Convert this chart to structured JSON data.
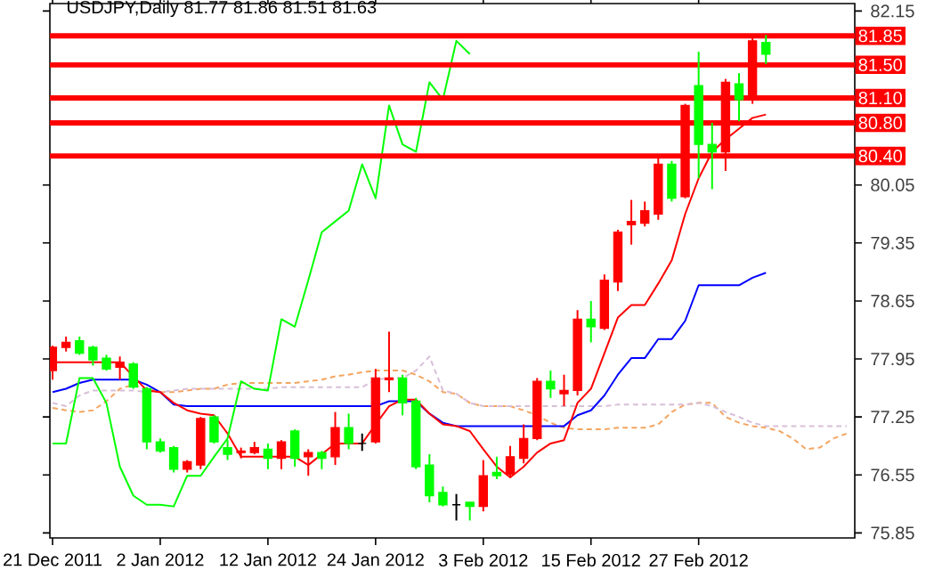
{
  "chart_data": {
    "type": "candlestick",
    "title": "USDJPY,Daily  81.77 81.86 81.51 81.63",
    "categories": [
      "21 Dec 2011",
      null,
      null,
      null,
      null,
      null,
      null,
      null,
      "2 Jan 2012",
      null,
      null,
      null,
      null,
      null,
      null,
      null,
      "12 Jan 2012",
      null,
      null,
      null,
      null,
      null,
      null,
      null,
      "24 Jan 2012",
      null,
      null,
      null,
      null,
      null,
      null,
      null,
      "3 Feb 2012",
      null,
      null,
      null,
      null,
      null,
      null,
      null,
      "15 Feb 2012",
      null,
      null,
      null,
      null,
      null,
      null,
      null,
      "27 Feb 2012",
      null,
      null,
      null,
      null,
      null,
      null,
      null,
      null,
      null,
      null,
      null
    ],
    "ohlc": [
      [
        77.81,
        78.11,
        77.7,
        78.09
      ],
      [
        78.09,
        78.22,
        78.04,
        78.15
      ],
      [
        78.17,
        78.22,
        78.0,
        78.02
      ],
      [
        78.09,
        78.11,
        77.87,
        77.94
      ],
      [
        77.96,
        78.0,
        77.81,
        77.83
      ],
      [
        77.85,
        77.98,
        77.7,
        77.91
      ],
      [
        77.89,
        77.91,
        77.59,
        77.61
      ],
      [
        77.59,
        77.61,
        76.86,
        76.95
      ],
      [
        76.95,
        76.99,
        76.82,
        76.84
      ],
      [
        76.88,
        76.9,
        76.58,
        76.62
      ],
      [
        76.62,
        76.73,
        76.58,
        76.71
      ],
      [
        76.67,
        77.25,
        76.62,
        77.23
      ],
      [
        77.25,
        77.27,
        76.93,
        76.95
      ],
      [
        76.88,
        76.97,
        76.73,
        76.8
      ],
      [
        76.82,
        76.88,
        76.75,
        76.84
      ],
      [
        76.82,
        76.95,
        76.8,
        76.88
      ],
      [
        76.86,
        76.93,
        76.62,
        76.75
      ],
      [
        76.75,
        76.97,
        76.62,
        76.95
      ],
      [
        77.08,
        77.1,
        76.65,
        76.75
      ],
      [
        76.77,
        76.86,
        76.54,
        76.82
      ],
      [
        76.82,
        76.84,
        76.62,
        76.75
      ],
      [
        76.77,
        77.31,
        76.67,
        77.12
      ],
      [
        77.12,
        77.29,
        76.86,
        76.93
      ],
      [
        76.93,
        77.05,
        76.84,
        76.93
      ],
      [
        76.95,
        77.83,
        76.93,
        77.72
      ],
      [
        77.7,
        78.28,
        77.55,
        77.72
      ],
      [
        77.72,
        77.76,
        77.27,
        77.42
      ],
      [
        77.44,
        77.48,
        76.62,
        76.65
      ],
      [
        76.67,
        76.8,
        76.22,
        76.3
      ],
      [
        76.34,
        76.41,
        76.17,
        76.19
      ],
      [
        76.19,
        76.32,
        76.0,
        76.19
      ],
      [
        76.22,
        76.22,
        76.0,
        76.17
      ],
      [
        76.17,
        76.73,
        76.11,
        76.54
      ],
      [
        76.58,
        76.77,
        76.5,
        76.54
      ],
      [
        76.56,
        76.9,
        76.52,
        76.77
      ],
      [
        76.75,
        77.16,
        76.69,
        76.99
      ],
      [
        76.99,
        77.72,
        76.97,
        77.68
      ],
      [
        77.68,
        77.81,
        77.48,
        77.59
      ],
      [
        77.53,
        77.76,
        77.38,
        77.57
      ],
      [
        77.57,
        78.54,
        77.51,
        78.43
      ],
      [
        78.43,
        78.65,
        78.15,
        78.34
      ],
      [
        78.32,
        78.97,
        78.3,
        78.9
      ],
      [
        78.88,
        79.51,
        78.77,
        79.48
      ],
      [
        79.57,
        79.87,
        79.33,
        79.61
      ],
      [
        79.59,
        79.85,
        79.55,
        79.74
      ],
      [
        79.7,
        80.37,
        79.63,
        80.3
      ],
      [
        80.3,
        80.34,
        79.85,
        79.89
      ],
      [
        79.91,
        81.03,
        79.89,
        81.01
      ],
      [
        81.25,
        81.66,
        80.13,
        80.54
      ],
      [
        80.54,
        80.8,
        80.0,
        80.45
      ],
      [
        80.45,
        81.33,
        80.22,
        81.29
      ],
      [
        81.27,
        81.4,
        80.82,
        81.08
      ],
      [
        81.1,
        81.83,
        81.03,
        81.79
      ],
      [
        81.77,
        81.86,
        81.51,
        81.63
      ],
      null,
      null,
      null,
      null,
      null,
      null
    ],
    "colors": [
      "#ff0000",
      "#ff0000",
      "#00ff00",
      "#00ff00",
      "#00ff00",
      "#ff0000",
      "#00ff00",
      "#00ff00",
      "#00ff00",
      "#00ff00",
      "#ff0000",
      "#ff0000",
      "#00ff00",
      "#00ff00",
      "#ff0000",
      "#ff0000",
      "#00ff00",
      "#ff0000",
      "#00ff00",
      "#ff0000",
      "#00ff00",
      "#ff0000",
      "#00ff00",
      "#000000",
      "#ff0000",
      "#ff0000",
      "#00ff00",
      "#00ff00",
      "#00ff00",
      "#00ff00",
      "#000000",
      "#00ff00",
      "#ff0000",
      "#00ff00",
      "#ff0000",
      "#ff0000",
      "#ff0000",
      "#00ff00",
      "#ff0000",
      "#ff0000",
      "#00ff00",
      "#ff0000",
      "#ff0000",
      "#ff0000",
      "#ff0000",
      "#ff0000",
      "#00ff00",
      "#ff0000",
      "#00ff00",
      "#00ff00",
      "#ff0000",
      "#00ff00",
      "#ff0000",
      "#00ff00",
      null,
      null,
      null,
      null,
      null,
      null
    ],
    "series": [
      {
        "type": "line",
        "color": "#f4a460",
        "line_style": "dashed",
        "values": [
          77.36,
          77.33,
          77.31,
          77.33,
          77.44,
          77.59,
          77.64,
          77.59,
          77.55,
          77.55,
          77.57,
          77.59,
          77.59,
          77.64,
          77.66,
          77.66,
          77.66,
          77.66,
          77.66,
          77.68,
          77.7,
          77.74,
          77.76,
          77.79,
          77.81,
          77.81,
          77.81,
          77.76,
          77.68,
          77.55,
          77.53,
          77.42,
          77.38,
          77.38,
          77.38,
          77.33,
          77.27,
          77.18,
          77.12,
          77.1,
          77.1,
          77.1,
          77.12,
          77.12,
          77.12,
          77.16,
          77.31,
          77.4,
          77.42,
          77.42,
          77.25,
          77.18,
          77.14,
          77.12,
          77.08,
          76.99,
          76.86,
          76.88,
          76.99,
          77.05
        ]
      },
      {
        "type": "line",
        "color": "#d8bfd8",
        "line_style": "dashed",
        "values": [
          77.42,
          77.38,
          77.51,
          77.57,
          77.57,
          77.57,
          77.57,
          77.55,
          77.55,
          77.57,
          77.59,
          77.59,
          77.59,
          77.59,
          77.59,
          77.59,
          77.59,
          77.61,
          77.61,
          77.61,
          77.61,
          77.61,
          77.61,
          77.61,
          77.7,
          77.72,
          77.72,
          77.81,
          77.98,
          77.57,
          77.53,
          77.42,
          77.38,
          77.38,
          77.38,
          77.38,
          77.38,
          77.38,
          77.38,
          77.38,
          77.38,
          77.38,
          77.4,
          77.4,
          77.4,
          77.4,
          77.4,
          77.4,
          77.42,
          77.38,
          77.31,
          77.25,
          77.18,
          77.14,
          77.14,
          77.14,
          77.14,
          77.14,
          77.14,
          77.14
        ]
      },
      {
        "type": "line",
        "color": "#0000ff",
        "line_style": "solid",
        "values": [
          77.55,
          77.59,
          77.66,
          77.7,
          77.7,
          77.7,
          77.7,
          77.64,
          77.55,
          77.4,
          77.38,
          77.38,
          77.38,
          77.38,
          77.38,
          77.38,
          77.38,
          77.38,
          77.38,
          77.38,
          77.38,
          77.38,
          77.38,
          77.38,
          77.38,
          77.44,
          77.44,
          77.44,
          77.29,
          77.18,
          77.14,
          77.14,
          77.14,
          77.14,
          77.14,
          77.14,
          77.14,
          77.14,
          77.14,
          77.27,
          77.33,
          77.51,
          77.76,
          77.96,
          77.96,
          78.19,
          78.19,
          78.41,
          78.84,
          78.84,
          78.84,
          78.84,
          78.93,
          78.99,
          null,
          null,
          null,
          null,
          null,
          null
        ]
      },
      {
        "type": "line",
        "color": "#ff0000",
        "line_style": "solid",
        "values": [
          77.91,
          77.91,
          77.91,
          77.91,
          77.91,
          77.91,
          77.74,
          77.57,
          77.55,
          77.42,
          77.33,
          77.29,
          77.27,
          77.05,
          76.77,
          76.77,
          76.77,
          76.77,
          76.77,
          76.67,
          76.8,
          76.93,
          76.93,
          76.93,
          77.16,
          77.38,
          77.46,
          77.46,
          77.29,
          77.16,
          77.14,
          77.08,
          76.86,
          76.65,
          76.52,
          76.65,
          76.82,
          76.93,
          76.97,
          77.42,
          77.59,
          78.02,
          78.45,
          78.6,
          78.6,
          78.86,
          79.14,
          79.7,
          80.13,
          80.45,
          80.6,
          80.73,
          80.86,
          80.9,
          null,
          null,
          null,
          null,
          null,
          null
        ]
      },
      {
        "type": "line",
        "color": "#00ff00",
        "line_style": "solid",
        "values": [
          76.93,
          76.93,
          77.72,
          77.72,
          77.42,
          76.65,
          76.3,
          76.19,
          76.19,
          76.17,
          76.54,
          76.54,
          76.77,
          76.99,
          77.68,
          77.59,
          77.57,
          78.43,
          78.34,
          78.9,
          79.48,
          79.61,
          79.74,
          80.3,
          79.89,
          81.01,
          80.54,
          80.45,
          81.29,
          81.08,
          81.79,
          81.63,
          null,
          null,
          null,
          null,
          null,
          null,
          null,
          null,
          null,
          null,
          null,
          null,
          null,
          null,
          null,
          null,
          null,
          null,
          null,
          null,
          null,
          null,
          null,
          null,
          null,
          null,
          null,
          null
        ]
      }
    ],
    "ref_lines": [
      {
        "axis": "y",
        "value": 81.85,
        "label": "81.85",
        "color": "#ff0000"
      },
      {
        "axis": "y",
        "value": 81.5,
        "label": "81.50",
        "color": "#ff0000"
      },
      {
        "axis": "y",
        "value": 81.1,
        "label": "81.10",
        "color": "#ff0000"
      },
      {
        "axis": "y",
        "value": 80.8,
        "label": "80.80",
        "color": "#ff0000"
      },
      {
        "axis": "y",
        "value": 80.4,
        "label": "80.40",
        "color": "#ff0000"
      }
    ],
    "ylim": [
      75.79,
      82.24
    ],
    "yticks": [
      75.85,
      76.55,
      77.25,
      77.95,
      78.65,
      79.35,
      80.05,
      82.15
    ]
  }
}
